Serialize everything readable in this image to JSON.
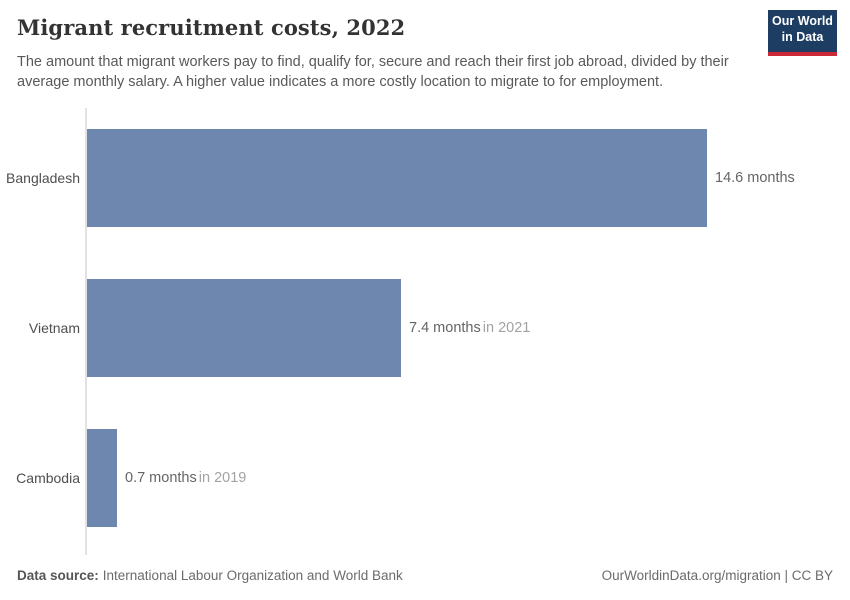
{
  "header": {
    "title": "Migrant recruitment costs, 2022",
    "subtitle_lines": [
      "The amount that migrant workers pay to find, qualify for, secure and reach their first job abroad, divided by their",
      "average monthly salary. A higher value indicates a more costly location to migrate to for employment."
    ],
    "logo": {
      "line1": "Our World",
      "line2": "in Data",
      "bg_color": "#1d3d63",
      "accent_color": "#cc2936"
    }
  },
  "chart_data": {
    "type": "bar",
    "orientation": "horizontal",
    "title": "Migrant recruitment costs, 2022",
    "categories": [
      "Bangladesh",
      "Vietnam",
      "Cambodia"
    ],
    "values": [
      14.6,
      7.4,
      0.7
    ],
    "unit": "months",
    "value_labels": [
      "14.6 months",
      "7.4 months",
      "0.7 months"
    ],
    "year_notes": [
      "",
      "in 2021",
      "in 2019"
    ],
    "xlim": [
      0,
      14.6
    ],
    "xlabel": "",
    "ylabel": "",
    "grid": false,
    "legend": false,
    "bar_color": "#6e87ae",
    "axis_color": "#e2e2e2"
  },
  "footer": {
    "source_label": "Data source:",
    "source_text": "International Labour Organization and World Bank",
    "attribution": "OurWorldinData.org/migration | CC BY"
  }
}
